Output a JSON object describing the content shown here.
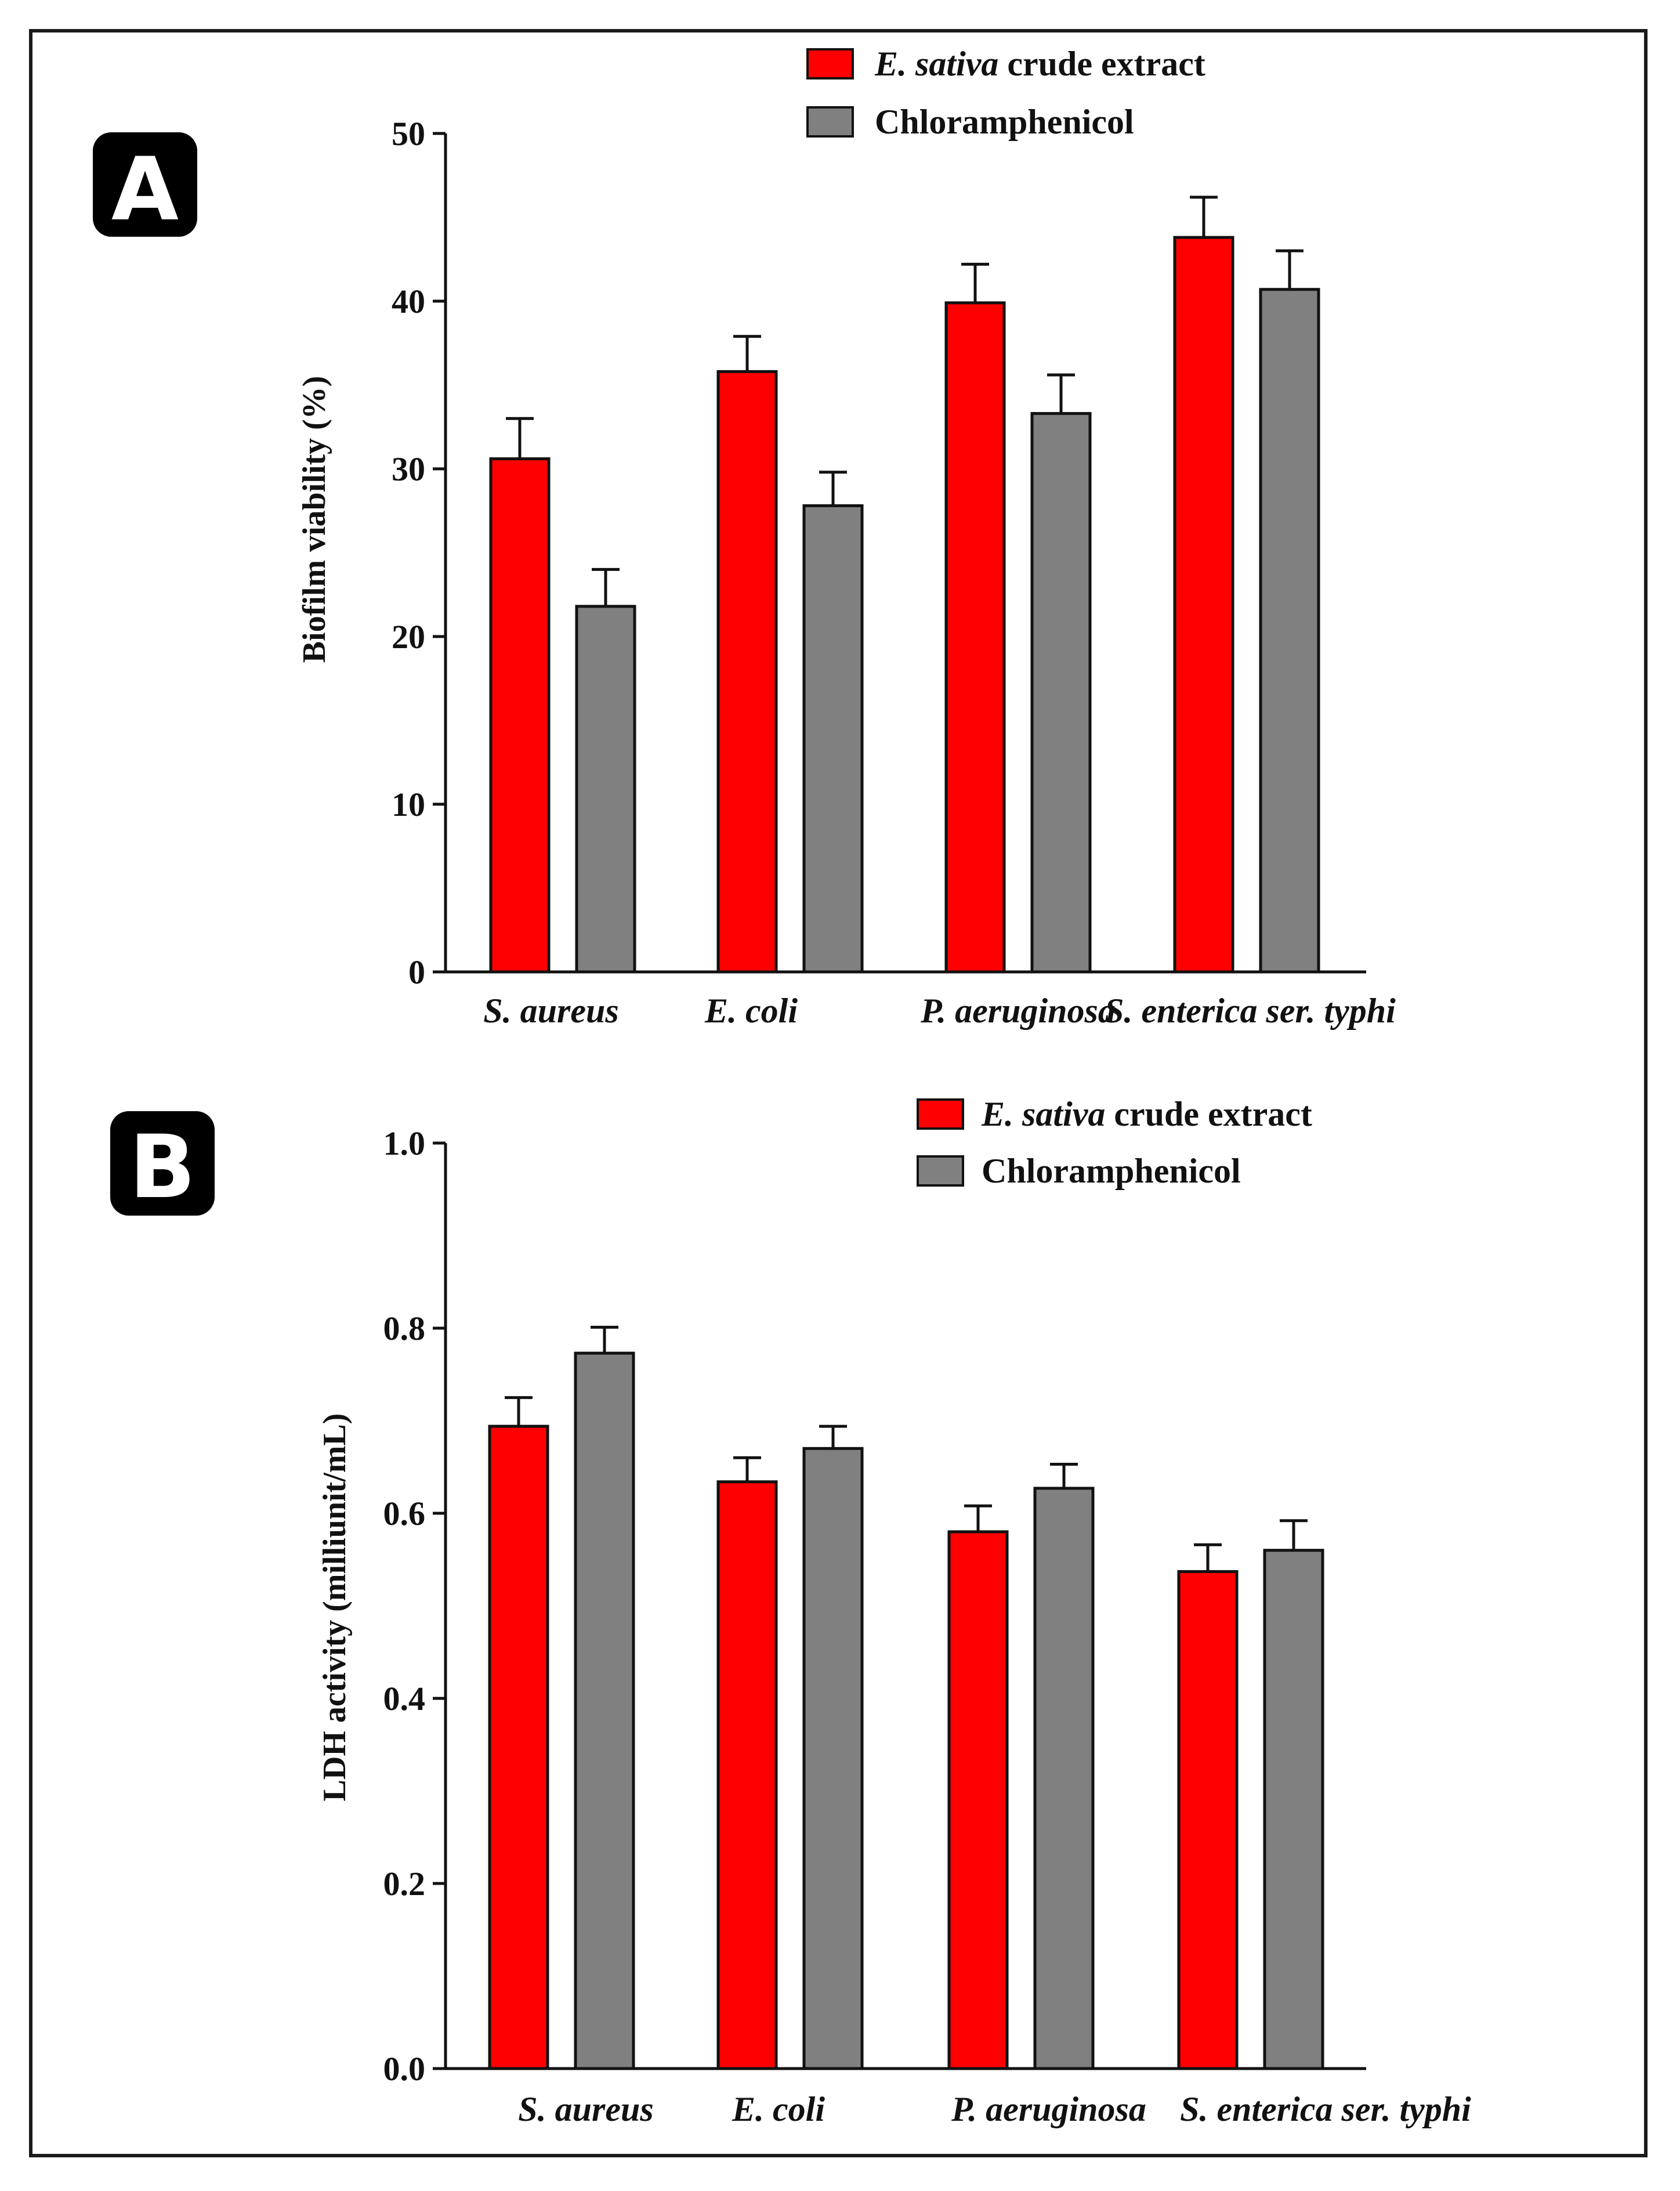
{
  "chart_data": [
    {
      "panel": "A",
      "type": "bar",
      "ylabel": "Biofilm viability (%)",
      "xlabel": "",
      "ylim": [
        0,
        50
      ],
      "yticks": [
        "0",
        "10",
        "20",
        "30",
        "40",
        "50"
      ],
      "categories": [
        "S. aureus",
        "E. coli",
        "P. aeruginosa",
        "S. enterica ser. typhi"
      ],
      "legend_position": "top-center",
      "legend_italic": [
        "E. sativa",
        ""
      ],
      "legend_rest": [
        " crude extract",
        "Chloramphenicol"
      ],
      "series": [
        {
          "name": "E. sativa crude extract",
          "color": "#ff0000",
          "values": [
            30.6,
            35.8,
            39.9,
            43.8
          ],
          "errors": [
            2.4,
            2.1,
            2.3,
            2.4
          ]
        },
        {
          "name": "Chloramphenicol",
          "color": "#808080",
          "values": [
            21.8,
            27.8,
            33.3,
            40.7
          ],
          "errors": [
            2.2,
            2.0,
            2.3,
            2.3
          ]
        }
      ]
    },
    {
      "panel": "B",
      "type": "bar",
      "ylabel": "LDH activity (milliunit/mL)",
      "xlabel": "",
      "ylim": [
        0,
        1.0
      ],
      "yticks": [
        "0.0",
        "0.2",
        "0.4",
        "0.6",
        "0.8",
        "1.0"
      ],
      "categories": [
        "S. aureus",
        "E. coli",
        "P. aeruginosa",
        "S. enterica ser. typhi"
      ],
      "legend_position": "top-center",
      "legend_italic": [
        "E. sativa",
        ""
      ],
      "legend_rest": [
        " crude extract",
        "Chloramphenicol"
      ],
      "series": [
        {
          "name": "E. sativa crude extract",
          "color": "#ff0000",
          "values": [
            0.694,
            0.634,
            0.58,
            0.537
          ],
          "errors": [
            0.031,
            0.026,
            0.028,
            0.029
          ]
        },
        {
          "name": "Chloramphenicol",
          "color": "#808080",
          "values": [
            0.773,
            0.67,
            0.627,
            0.56
          ],
          "errors": [
            0.028,
            0.024,
            0.026,
            0.032
          ]
        }
      ]
    }
  ]
}
